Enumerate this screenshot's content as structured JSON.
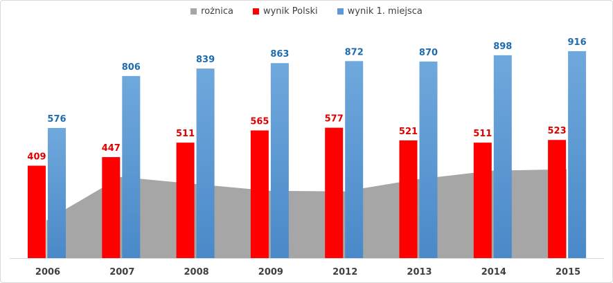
{
  "chart_data": {
    "type": "bar",
    "categories": [
      "2006",
      "2007",
      "2008",
      "2009",
      "2012",
      "2013",
      "2014",
      "2015"
    ],
    "series": [
      {
        "name": "rożnica",
        "kind": "area",
        "color": "#a6a6a6",
        "values": [
          167,
          359,
          328,
          298,
          295,
          349,
          387,
          393
        ]
      },
      {
        "name": "wynik Polski",
        "kind": "bar",
        "color": "#ff0000",
        "label_color": "#e00000",
        "values": [
          409,
          447,
          511,
          565,
          577,
          521,
          511,
          523
        ]
      },
      {
        "name": "wynik 1. miejsca",
        "kind": "bar",
        "color": "#5b9bd5",
        "label_color": "#1f6bb0",
        "values": [
          576,
          806,
          839,
          863,
          872,
          870,
          898,
          916
        ]
      }
    ],
    "ylim": [
      0,
      1000
    ],
    "grid": false,
    "legend_position": "top"
  }
}
